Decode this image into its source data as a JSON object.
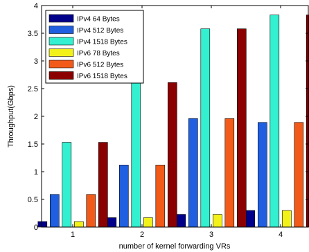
{
  "chart_data": {
    "type": "bar",
    "title": "",
    "xlabel": "number of kernel forwarding VRs",
    "ylabel": "Throughput(Gbps)",
    "categories": [
      "1",
      "2",
      "3",
      "4"
    ],
    "ylim": [
      0,
      4
    ],
    "yticks": [
      "0",
      "0.5",
      "1",
      "1.5",
      "2",
      "2.5",
      "3",
      "3.5",
      "4"
    ],
    "grid": false,
    "legend_position": "top-left",
    "series": [
      {
        "name": "IPv4 64 Bytes",
        "color": "#00008b",
        "values": [
          0.1,
          0.17,
          0.23,
          0.3
        ]
      },
      {
        "name": "IPv4 512 Bytes",
        "color": "#1f5fe0",
        "values": [
          0.59,
          1.12,
          1.96,
          1.89
        ]
      },
      {
        "name": "IPv4 1518 Bytes",
        "color": "#33f0d0",
        "values": [
          1.53,
          2.61,
          3.58,
          3.83
        ]
      },
      {
        "name": "IPv6 78 Bytes",
        "color": "#f2f21a",
        "values": [
          0.1,
          0.17,
          0.23,
          0.3
        ]
      },
      {
        "name": "IPv6 512 Bytes",
        "color": "#f25a19",
        "values": [
          0.59,
          1.12,
          1.96,
          1.89
        ]
      },
      {
        "name": "IPv6 1518 Bytes",
        "color": "#8b0000",
        "values": [
          1.53,
          2.61,
          3.58,
          3.83
        ]
      }
    ]
  }
}
